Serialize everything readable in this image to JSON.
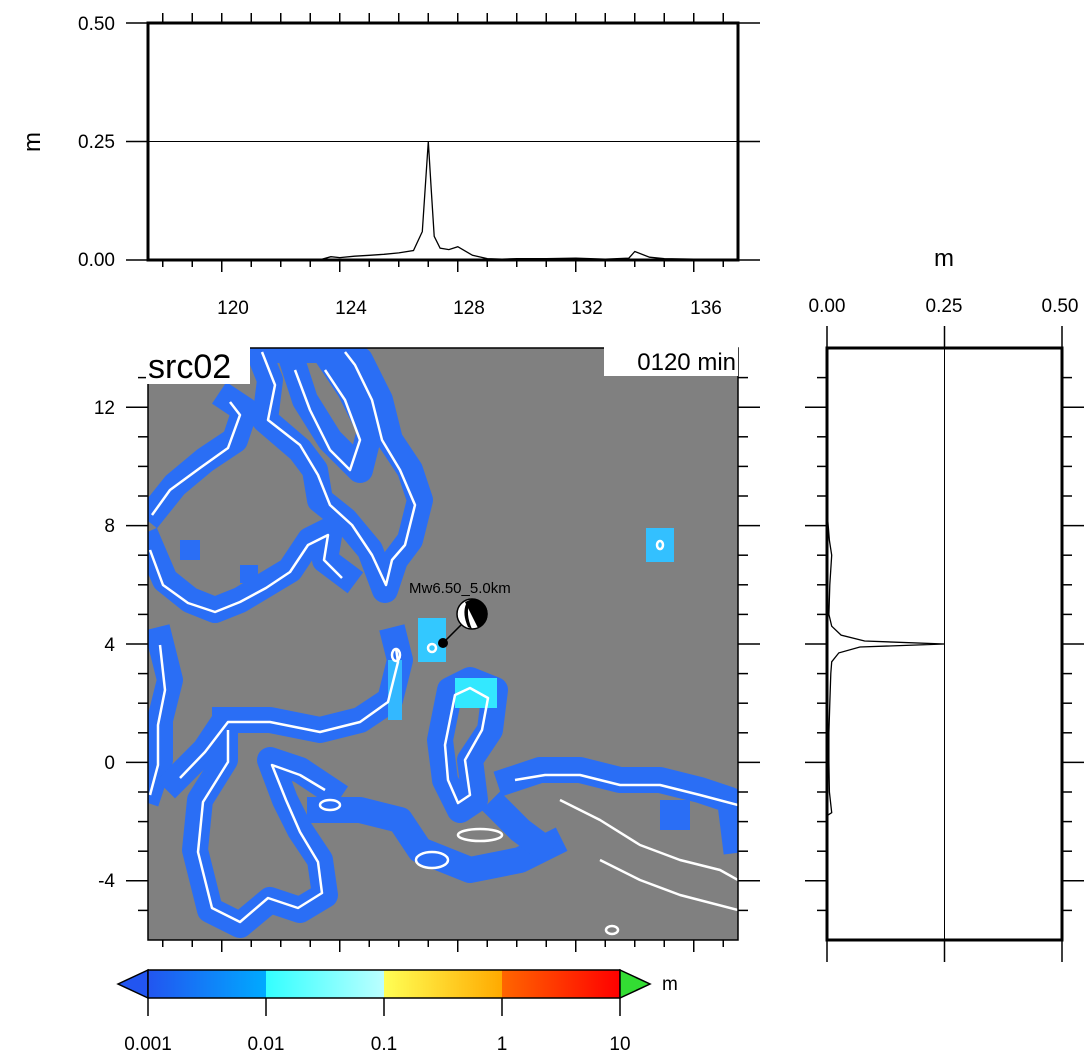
{
  "map": {
    "source_label": "src02",
    "time_label": "0120 min",
    "event_label": "Mw6.50_5.0km",
    "x_ticks": [
      "120",
      "124",
      "128",
      "132",
      "136"
    ],
    "y_ticks": [
      "12",
      "8",
      "4",
      "0",
      "-4"
    ],
    "colors": {
      "ocean": "#808080",
      "land_outline": "#ffffff",
      "low_amp": "#2a6ef5",
      "mid_amp": "#33e8ff"
    }
  },
  "chart_data": [
    {
      "type": "line",
      "id": "top-profile",
      "ylabel": "m",
      "ylim": [
        0,
        0.5
      ],
      "xlim": [
        117.5,
        137.5
      ],
      "y_ticks": [
        "0.00",
        "0.25",
        "0.50"
      ],
      "x_ticks": [
        "120",
        "124",
        "128",
        "132",
        "136"
      ],
      "reference_line": 0.25,
      "x": [
        117.5,
        123.3,
        123.7,
        124.0,
        124.5,
        125.0,
        125.5,
        126.0,
        126.5,
        126.8,
        127.0,
        127.1,
        127.2,
        127.4,
        127.7,
        128.0,
        128.5,
        129.0,
        129.5,
        130.0,
        131.0,
        132.0,
        133.0,
        133.8,
        134.0,
        134.5,
        135.0,
        136.0,
        137.5
      ],
      "y": [
        0,
        0,
        0.007,
        0.005,
        0.008,
        0.01,
        0.012,
        0.015,
        0.02,
        0.06,
        0.25,
        0.15,
        0.05,
        0.025,
        0.022,
        0.028,
        0.01,
        0.003,
        0.002,
        0.003,
        0.003,
        0.004,
        0.002,
        0.004,
        0.018,
        0.006,
        0.003,
        0.002,
        0
      ]
    },
    {
      "type": "line",
      "id": "side-profile",
      "xlabel": "m",
      "xlim": [
        0,
        0.5
      ],
      "ylim": [
        -6,
        14
      ],
      "x_ticks": [
        "0.00",
        "0.25",
        "0.50"
      ],
      "reference_line": 0.25,
      "y": [
        8.5,
        7.5,
        7.0,
        6.0,
        5.0,
        4.6,
        4.3,
        4.1,
        4.0,
        3.9,
        3.7,
        3.4,
        3.0,
        2.0,
        1.0,
        0.0,
        -1.0,
        -1.7,
        -1.8
      ],
      "x": [
        0.0,
        0.005,
        0.01,
        0.006,
        0.004,
        0.01,
        0.03,
        0.08,
        0.25,
        0.07,
        0.025,
        0.01,
        0.008,
        0.006,
        0.004,
        0.004,
        0.005,
        0.01,
        0.0
      ]
    },
    {
      "type": "colorbar",
      "id": "amplitude-scale",
      "unit": "m",
      "tick_labels": [
        "0.001",
        "0.01",
        "0.1",
        "1",
        "10"
      ],
      "colors": [
        "#2255f0",
        "#00aaff",
        "#33ffff",
        "#ffff55",
        "#ffaa00",
        "#ff3300",
        "#33dd33"
      ]
    }
  ]
}
